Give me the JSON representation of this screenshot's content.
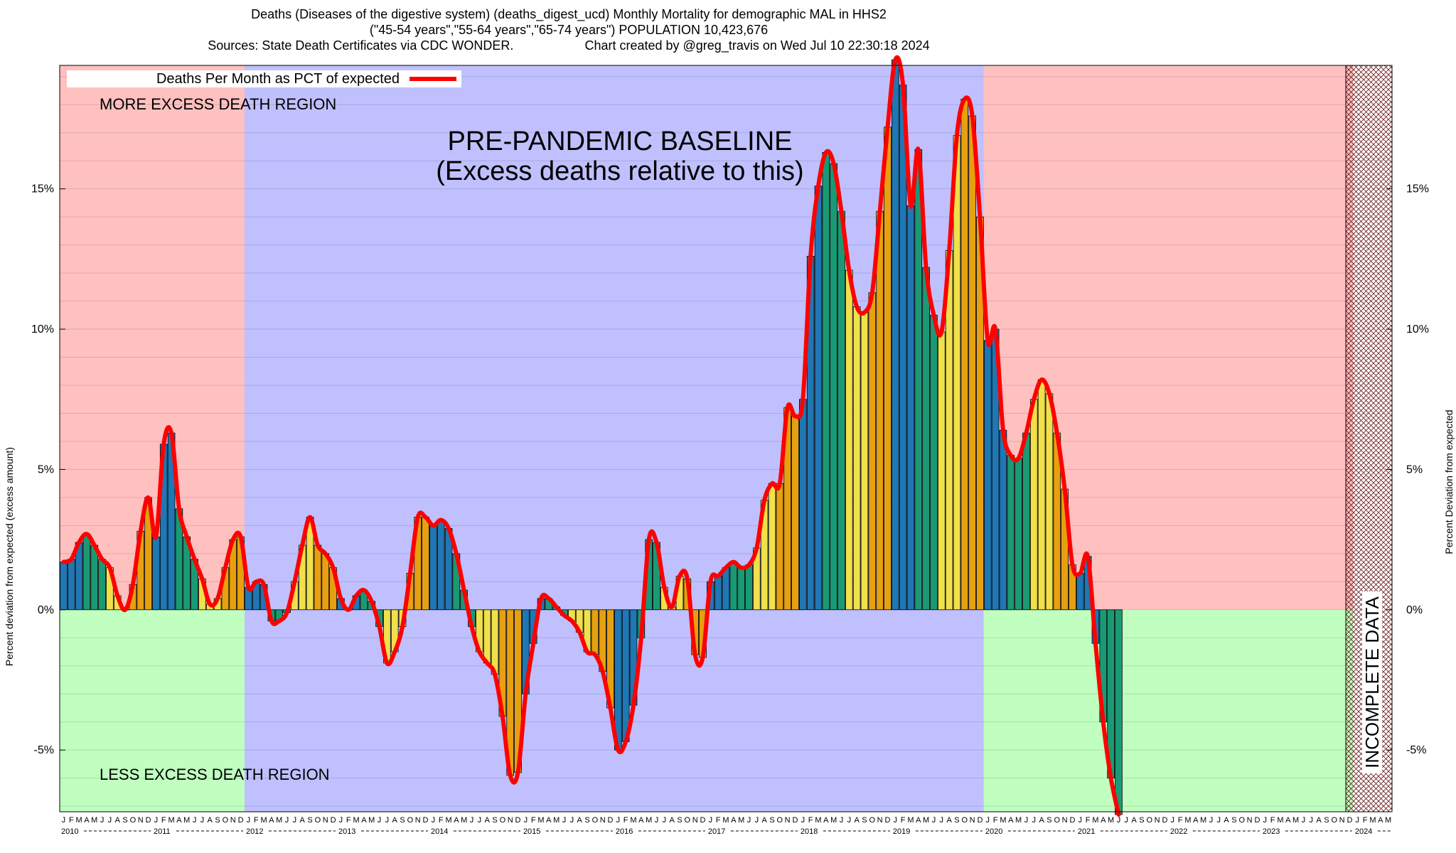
{
  "header": {
    "line1": "Deaths (Diseases of the digestive system) (deaths_digest_ucd) Monthly Mortality for demographic MAL in HHS2",
    "line2": "(\"45-54 years\",\"55-64 years\",\"65-74 years\") POPULATION 10,423,676",
    "line3_left": "Sources: State Death Certificates via CDC WONDER.",
    "line3_right": "Chart created by @greg_travis on Wed Jul 10 22:30:18 2024"
  },
  "chart_data": {
    "type": "bar",
    "legend": "Deaths Per Month as PCT of expected",
    "ylabel_left": "Percent deviation from expected (excess amount)",
    "ylabel_right": "Percent Deviation from expected",
    "ylim": [
      -7.2,
      19.4
    ],
    "yticks": [
      -5,
      0,
      5,
      10,
      15
    ],
    "ytick_labels": [
      "-5%",
      "0%",
      "5%",
      "10%",
      "15%"
    ],
    "grid": true,
    "start": "2010-01",
    "month_letters": [
      "J",
      "F",
      "M",
      "A",
      "M",
      "J",
      "J",
      "A",
      "S",
      "O",
      "N",
      "D"
    ],
    "years": [
      "2010",
      "2011",
      "2012",
      "2013",
      "2014",
      "2015",
      "2016",
      "2017",
      "2018",
      "2019",
      "2020",
      "2021",
      "2022",
      "2023",
      "2024"
    ],
    "values": [
      1.7,
      1.8,
      2.4,
      2.7,
      2.3,
      1.8,
      1.5,
      0.5,
      0.0,
      0.9,
      2.8,
      4.0,
      2.6,
      5.9,
      6.3,
      3.6,
      2.6,
      1.8,
      1.1,
      0.2,
      0.4,
      1.5,
      2.5,
      2.6,
      0.8,
      1.0,
      0.9,
      -0.4,
      -0.4,
      -0.1,
      1.0,
      2.3,
      3.3,
      2.3,
      2.0,
      1.5,
      0.4,
      0.0,
      0.5,
      0.7,
      0.3,
      -0.6,
      -1.9,
      -1.5,
      -0.6,
      1.3,
      3.3,
      3.3,
      3.0,
      3.2,
      2.9,
      2.0,
      0.7,
      -0.6,
      -1.5,
      -1.9,
      -2.3,
      -3.8,
      -5.9,
      -5.8,
      -3.0,
      -1.2,
      0.4,
      0.4,
      0.1,
      -0.2,
      -0.4,
      -0.8,
      -1.5,
      -1.6,
      -2.2,
      -3.5,
      -5.0,
      -4.7,
      -3.4,
      -1.0,
      2.5,
      2.4,
      0.8,
      0.1,
      1.2,
      1.1,
      -1.6,
      -1.7,
      1.0,
      1.2,
      1.5,
      1.7,
      1.5,
      1.6,
      2.2,
      3.9,
      4.5,
      4.5,
      7.2,
      6.9,
      7.5,
      12.6,
      15.1,
      16.3,
      15.9,
      14.2,
      12.1,
      10.8,
      10.6,
      11.3,
      14.2,
      17.2,
      19.6,
      18.7,
      14.4,
      16.4,
      12.2,
      10.5,
      9.9,
      12.8,
      16.9,
      18.2,
      17.6,
      14.0,
      9.6,
      10.0,
      6.4,
      5.5,
      5.4,
      6.3,
      7.5,
      8.2,
      7.7,
      6.3,
      4.3,
      1.6,
      1.3,
      1.9,
      -1.2,
      -4.0,
      -6.0,
      -7.3
    ],
    "incomplete_from": 167,
    "regions": [
      {
        "from_year": 2010,
        "to_year": 2012,
        "color": "#ffc0c0",
        "neg_color": "#c0ffc0"
      },
      {
        "from_year": 2012,
        "to_year": 2020,
        "color": "#c0c0ff",
        "neg_color": "#c0c0ff"
      },
      {
        "from_year": 2020,
        "to_year": 2024,
        "color": "#ffc0c0",
        "neg_color": "#c0ffc0"
      }
    ],
    "bar_colors": [
      "#1f77b4",
      "#1a9a74",
      "#f0e04a",
      "#e6a010"
    ],
    "line_color": "#ff0000",
    "annotations": {
      "more": "MORE EXCESS DEATH REGION",
      "less": "LESS EXCESS DEATH REGION",
      "baseline_1": "PRE-PANDEMIC BASELINE",
      "baseline_2": "(Excess deaths relative to this)",
      "incomplete": "INCOMPLETE DATA"
    }
  }
}
